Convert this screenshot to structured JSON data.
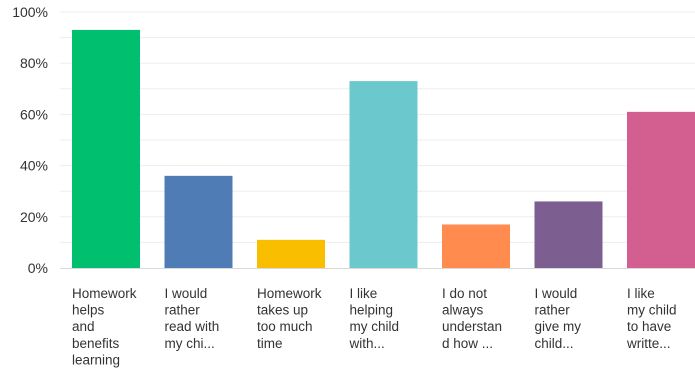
{
  "chart_data": {
    "type": "bar",
    "categories": [
      [
        "Homework",
        "helps",
        "and",
        "benefits",
        "learning"
      ],
      [
        "I would",
        "rather",
        "read with",
        "my chi..."
      ],
      [
        "Homework",
        "takes up",
        "too much",
        "time"
      ],
      [
        "I like",
        "helping",
        "my child",
        "with..."
      ],
      [
        "I do not",
        "always",
        "understan",
        "d how ..."
      ],
      [
        "I would",
        "rather",
        "give my",
        "child..."
      ],
      [
        "I like",
        "my child",
        "to have",
        "writte..."
      ]
    ],
    "values": [
      93,
      36,
      11,
      73,
      17,
      26,
      61
    ],
    "colors": [
      "#00bf6f",
      "#507cb6",
      "#f9be00",
      "#6bc8cd",
      "#ff8b4f",
      "#7d5e90",
      "#d25f90"
    ],
    "ylim": [
      0,
      100
    ],
    "yticks": [
      "0%",
      "20%",
      "40%",
      "60%",
      "80%",
      "100%"
    ],
    "ytick_values": [
      0,
      20,
      40,
      60,
      80,
      100
    ],
    "grid": true,
    "grid_color": "#ededed",
    "axis_color": "#d9d9d9",
    "title": "",
    "xlabel": "",
    "ylabel": ""
  }
}
